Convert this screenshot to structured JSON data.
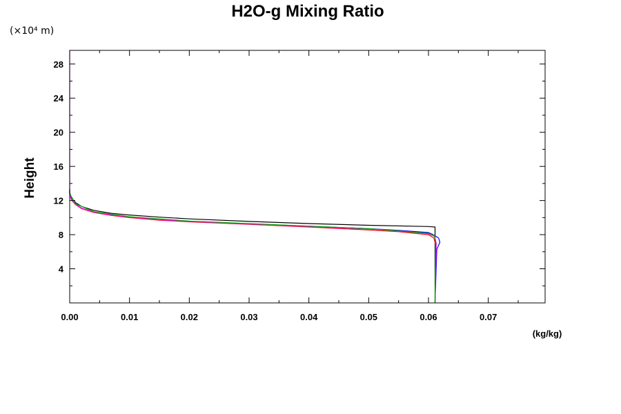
{
  "chart_data": {
    "type": "line",
    "title": "H2O-g Mixing Ratio",
    "xlabel": "",
    "x_unit": "(kg/kg)",
    "ylabel": "Height",
    "y_scale_label": "(×10⁴ m)",
    "xlim": [
      0,
      0.0795
    ],
    "ylim": [
      0,
      29.6
    ],
    "x_ticks": [
      "0.00",
      "0.01",
      "0.02",
      "0.03",
      "0.04",
      "0.05",
      "0.06",
      "0.07"
    ],
    "y_ticks": [
      "4",
      "8",
      "12",
      "16",
      "20",
      "24",
      "28"
    ],
    "grid": false,
    "series": [
      {
        "color": "#000000",
        "points": [
          [
            0.0611,
            0
          ],
          [
            0.0611,
            8.9
          ],
          [
            0.06,
            8.95
          ],
          [
            0.05,
            9.1
          ],
          [
            0.04,
            9.3
          ],
          [
            0.03,
            9.55
          ],
          [
            0.02,
            9.85
          ],
          [
            0.015,
            10.05
          ],
          [
            0.01,
            10.3
          ],
          [
            0.007,
            10.5
          ],
          [
            0.004,
            10.85
          ],
          [
            0.002,
            11.3
          ],
          [
            0.001,
            11.75
          ],
          [
            0.0003,
            12.3
          ],
          [
            0.0,
            12.9
          ],
          [
            0.0,
            13.4
          ]
        ]
      },
      {
        "color": "#0000ff",
        "points": [
          [
            0.0611,
            0
          ],
          [
            0.0614,
            6.3
          ],
          [
            0.0619,
            7.1
          ],
          [
            0.0617,
            7.6
          ],
          [
            0.0608,
            8.0
          ],
          [
            0.06,
            8.25
          ],
          [
            0.055,
            8.5
          ],
          [
            0.05,
            8.7
          ],
          [
            0.04,
            9.0
          ],
          [
            0.03,
            9.25
          ],
          [
            0.02,
            9.55
          ],
          [
            0.015,
            9.75
          ],
          [
            0.01,
            10.05
          ],
          [
            0.007,
            10.3
          ],
          [
            0.004,
            10.65
          ],
          [
            0.002,
            11.1
          ],
          [
            0.001,
            11.55
          ],
          [
            0.0003,
            12.1
          ],
          [
            0.0,
            12.8
          ],
          [
            0.0,
            13.2
          ]
        ]
      },
      {
        "color": "#ff0000",
        "points": [
          [
            0.0611,
            0
          ],
          [
            0.0612,
            6.8
          ],
          [
            0.0609,
            7.6
          ],
          [
            0.06,
            8.0
          ],
          [
            0.055,
            8.35
          ],
          [
            0.05,
            8.55
          ],
          [
            0.04,
            8.9
          ],
          [
            0.03,
            9.2
          ],
          [
            0.02,
            9.5
          ],
          [
            0.015,
            9.7
          ],
          [
            0.01,
            10.0
          ],
          [
            0.007,
            10.25
          ],
          [
            0.004,
            10.6
          ],
          [
            0.002,
            11.05
          ],
          [
            0.001,
            11.5
          ],
          [
            0.0003,
            12.05
          ],
          [
            0.0,
            12.7
          ],
          [
            0.0,
            13.3
          ]
        ]
      },
      {
        "color": "#ff00ff",
        "points": [
          [
            0.0611,
            0
          ],
          [
            0.0613,
            7.0
          ],
          [
            0.061,
            7.8
          ],
          [
            0.06,
            8.1
          ],
          [
            0.055,
            8.45
          ],
          [
            0.05,
            8.65
          ],
          [
            0.04,
            8.95
          ],
          [
            0.03,
            9.25
          ],
          [
            0.02,
            9.55
          ],
          [
            0.015,
            9.75
          ],
          [
            0.01,
            10.05
          ],
          [
            0.007,
            10.3
          ],
          [
            0.004,
            10.65
          ],
          [
            0.002,
            11.1
          ],
          [
            0.001,
            11.55
          ],
          [
            0.0003,
            12.1
          ],
          [
            0.0,
            12.75
          ],
          [
            0.0,
            14.0
          ],
          [
            0.0,
            29.6
          ]
        ]
      },
      {
        "color": "#00aa00",
        "points": [
          [
            0.0611,
            0
          ],
          [
            0.0612,
            7.2
          ],
          [
            0.061,
            7.9
          ],
          [
            0.06,
            8.15
          ],
          [
            0.05,
            8.7
          ],
          [
            0.04,
            9.0
          ],
          [
            0.03,
            9.3
          ],
          [
            0.02,
            9.6
          ],
          [
            0.01,
            10.1
          ],
          [
            0.004,
            10.7
          ],
          [
            0.001,
            11.6
          ],
          [
            0.0,
            12.8
          ]
        ]
      }
    ]
  }
}
